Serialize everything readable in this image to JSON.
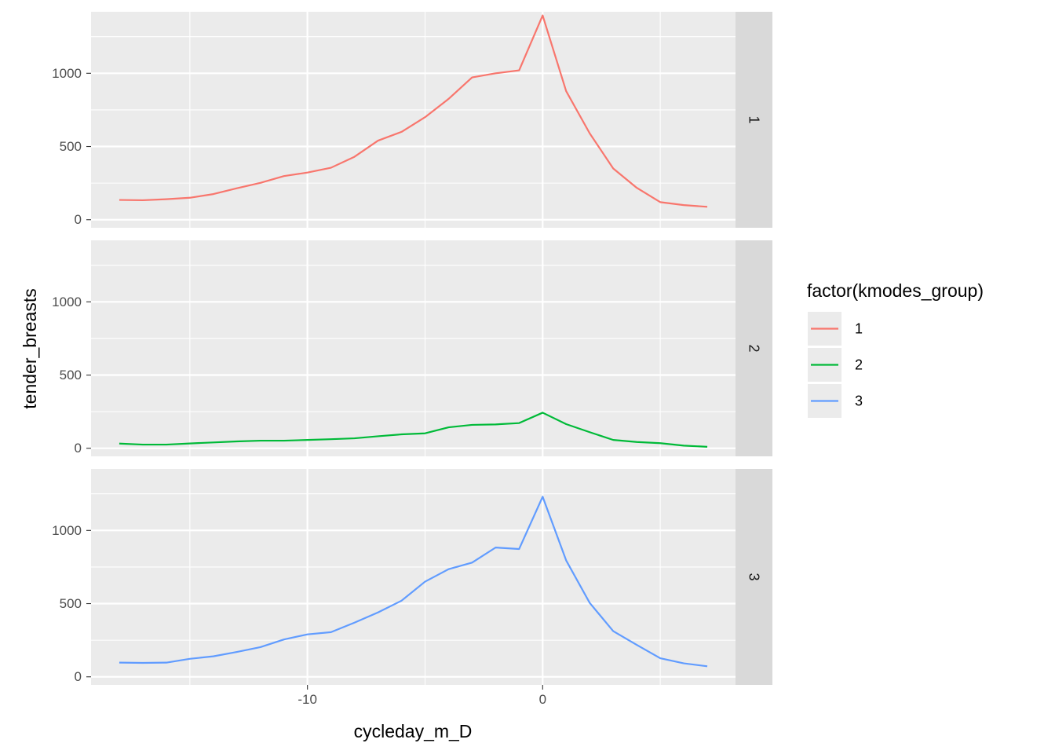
{
  "chart_data": {
    "type": "line",
    "xlabel": "cycleday_m_D",
    "ylabel": "tender_breasts",
    "x": [
      -18,
      -17,
      -16,
      -15,
      -14,
      -13,
      -12,
      -11,
      -10,
      -9,
      -8,
      -7,
      -6,
      -5,
      -4,
      -3,
      -2,
      -1,
      0,
      1,
      2,
      3,
      4,
      5,
      6,
      7
    ],
    "xlim": [
      -19.2,
      8.2
    ],
    "ylim": [
      -55,
      1420
    ],
    "x_ticks": [
      -10,
      0
    ],
    "x_tick_labels": [
      "-10",
      "0"
    ],
    "x_minor_ticks": [
      -15,
      -5,
      5
    ],
    "y_ticks": [
      0,
      500,
      1000
    ],
    "y_tick_labels": [
      "0",
      "500",
      "1000"
    ],
    "y_minor_ticks": [
      250,
      750,
      1250
    ],
    "grid": true,
    "legend_title": "factor(kmodes_group)",
    "legend_position": "right",
    "panels": [
      {
        "strip": "1",
        "series": "1"
      },
      {
        "strip": "2",
        "series": "2"
      },
      {
        "strip": "3",
        "series": "3"
      }
    ],
    "series": [
      {
        "name": "1",
        "color": "#F8766D",
        "values": [
          135,
          133,
          140,
          150,
          175,
          215,
          252,
          298,
          322,
          355,
          430,
          540,
          600,
          700,
          825,
          972,
          1000,
          1020,
          1395,
          878,
          590,
          350,
          218,
          120,
          100,
          88
        ]
      },
      {
        "name": "2",
        "color": "#00BA38",
        "values": [
          32,
          25,
          25,
          33,
          40,
          47,
          52,
          52,
          57,
          62,
          68,
          82,
          95,
          102,
          143,
          160,
          163,
          172,
          243,
          165,
          110,
          57,
          43,
          35,
          18,
          10
        ]
      },
      {
        "name": "3",
        "color": "#619CFF",
        "values": [
          97,
          95,
          97,
          123,
          140,
          170,
          203,
          255,
          290,
          305,
          370,
          440,
          520,
          650,
          735,
          780,
          883,
          873,
          1230,
          795,
          505,
          312,
          218,
          127,
          92,
          72
        ]
      }
    ]
  }
}
